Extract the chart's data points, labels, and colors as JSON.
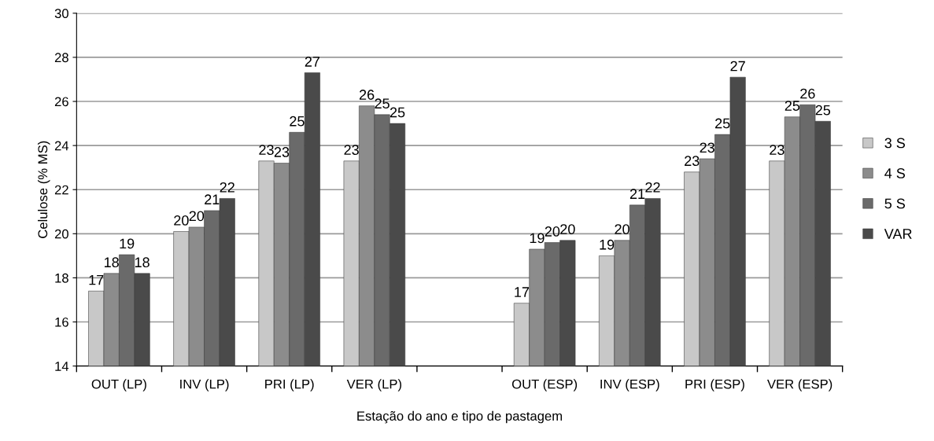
{
  "chart_data": {
    "type": "bar",
    "xlabel": "Estação do ano e tipo de pastagem",
    "ylabel": "Celulose (% MS)",
    "categories": [
      "OUT (LP)",
      "INV (LP)",
      "PRI (LP)",
      "VER (LP)",
      null,
      "OUT (ESP)",
      "INV (ESP)",
      "PRI (ESP)",
      "VER (ESP)"
    ],
    "ylim": [
      14,
      30
    ],
    "yticks": [
      14,
      16,
      18,
      20,
      22,
      24,
      26,
      28,
      30
    ],
    "grid": "y",
    "legend": "right",
    "series": [
      {
        "name": "3 S",
        "color": "#c8c8c8",
        "values": [
          17.4,
          20.1,
          23.3,
          23.3,
          null,
          16.85,
          19.0,
          22.8,
          23.3
        ],
        "value_labels": [
          "17",
          "20",
          "23",
          "23",
          null,
          "17",
          "19",
          "23",
          "23"
        ]
      },
      {
        "name": "4 S",
        "color": "#8c8c8c",
        "values": [
          18.2,
          20.3,
          23.2,
          25.8,
          null,
          19.3,
          19.7,
          23.4,
          25.3
        ],
        "value_labels": [
          "18",
          "20",
          "23",
          "26",
          null,
          "19",
          "20",
          "23",
          "25"
        ]
      },
      {
        "name": "5 S",
        "color": "#6a6a6a",
        "values": [
          19.05,
          21.05,
          24.6,
          25.4,
          null,
          19.6,
          21.3,
          24.5,
          25.85
        ],
        "value_labels": [
          "19",
          "21",
          "25",
          "25",
          null,
          "20",
          "21",
          "25",
          "26"
        ]
      },
      {
        "name": "VAR",
        "color": "#4a4a4a",
        "values": [
          18.2,
          21.6,
          27.3,
          25.0,
          null,
          19.7,
          21.6,
          27.1,
          25.1
        ],
        "value_labels": [
          "18",
          "22",
          "27",
          "25",
          null,
          "20",
          "22",
          "27",
          "25"
        ]
      }
    ]
  }
}
